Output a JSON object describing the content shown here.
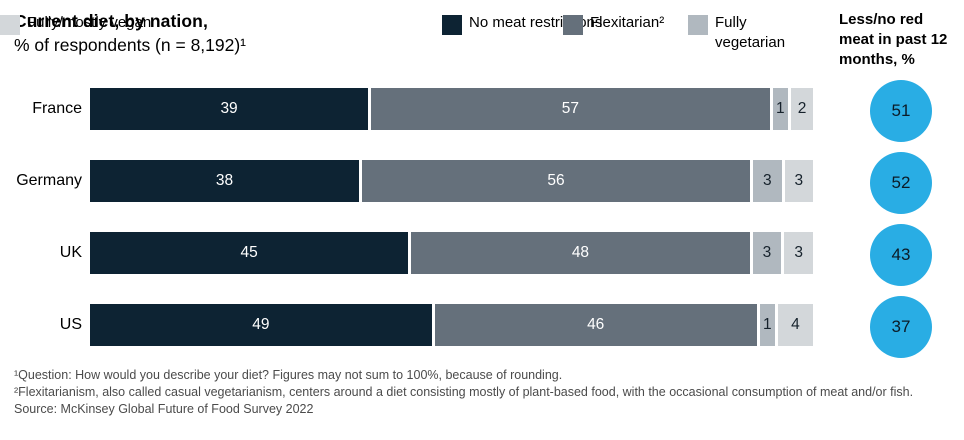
{
  "title": {
    "line1": "Current diet, by nation,",
    "line2": "% of respondents (n = 8,192)¹"
  },
  "legend": [
    {
      "label": "No meat restrictions",
      "color": "#0d2333"
    },
    {
      "label": "Flexitarian²",
      "color": "#65707b"
    },
    {
      "label": "Fully vegetarian",
      "color": "#b0b8bf"
    },
    {
      "label": "Fully/mostly vegan",
      "color": "#d3d7da"
    }
  ],
  "right_header": "Less/no red meat in past 12 months, %",
  "chart_data": {
    "type": "bar",
    "stacked": true,
    "orientation": "horizontal",
    "title": "Current diet, by nation, % of respondents (n = 8,192)",
    "categories": [
      "France",
      "Germany",
      "UK",
      "US"
    ],
    "series": [
      {
        "name": "No meat restrictions",
        "color": "#0d2333",
        "label_color": "#ffffff",
        "values": [
          39,
          38,
          45,
          49
        ]
      },
      {
        "name": "Flexitarian",
        "color": "#65707b",
        "label_color": "#ffffff",
        "values": [
          57,
          56,
          48,
          46
        ]
      },
      {
        "name": "Fully vegetarian",
        "color": "#b0b8bf",
        "label_color": "#16222c",
        "values": [
          1,
          3,
          3,
          1
        ]
      },
      {
        "name": "Fully/mostly vegan",
        "color": "#d3d7da",
        "label_color": "#16222c",
        "values": [
          2,
          3,
          3,
          4
        ]
      }
    ],
    "circles": {
      "label": "Less/no red meat in past 12 months, %",
      "color": "#29ade4",
      "text_color": "#0b1b27",
      "values": [
        51,
        52,
        43,
        37
      ]
    },
    "xlim": [
      0,
      100
    ],
    "grid": false,
    "legend_position": "top"
  },
  "footnotes": [
    "¹Question: How would you describe your diet? Figures may not sum to 100%, because of rounding.",
    "²Flexitarianism, also called casual vegetarianism, centers around a diet consisting mostly of plant-based food, with the occasional consumption of meat and/or fish."
  ],
  "source": "Source: McKinsey Global Future of Food Survey 2022"
}
